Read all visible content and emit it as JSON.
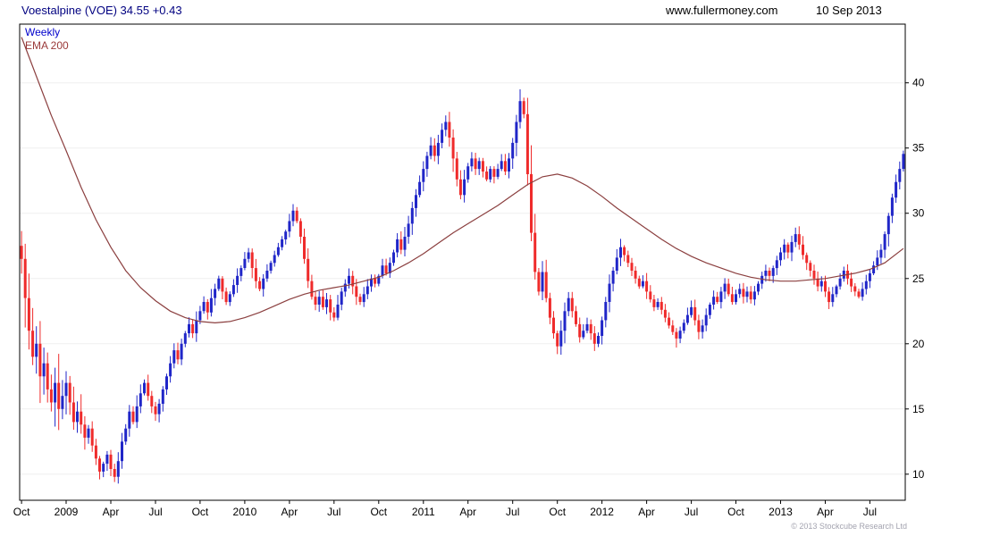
{
  "header": {
    "title": "Voestalpine (VOE) 34.55 +0.43",
    "url": "www.fullermoney.com",
    "date": "10 Sep 2013"
  },
  "legend": {
    "timeframe": "Weekly",
    "overlay": "EMA 200"
  },
  "footer": {
    "copyright": "© 2013 Stockcube Research Ltd"
  },
  "chart_data": {
    "type": "candlestick",
    "title": "Voestalpine (VOE) 34.55 +0.43",
    "subtitle": "Weekly candles with EMA 200 overlay, Oct 2008 - Sep 2013",
    "last_price": 34.55,
    "change": 0.43,
    "grid": "horizontal-only",
    "legend_position": "top-left",
    "y_ticks": [
      10,
      15,
      20,
      25,
      30,
      35,
      40
    ],
    "ylim": [
      8,
      44.5
    ],
    "x_ticks": [
      {
        "label": "Oct",
        "week": 0
      },
      {
        "label": "2009",
        "week": 12
      },
      {
        "label": "Apr",
        "week": 24
      },
      {
        "label": "Jul",
        "week": 36
      },
      {
        "label": "Oct",
        "week": 48
      },
      {
        "label": "2010",
        "week": 60
      },
      {
        "label": "Apr",
        "week": 72
      },
      {
        "label": "Jul",
        "week": 84
      },
      {
        "label": "Oct",
        "week": 96
      },
      {
        "label": "2011",
        "week": 108
      },
      {
        "label": "Apr",
        "week": 120
      },
      {
        "label": "Jul",
        "week": 132
      },
      {
        "label": "Oct",
        "week": 144
      },
      {
        "label": "2012",
        "week": 156
      },
      {
        "label": "Apr",
        "week": 168
      },
      {
        "label": "Jul",
        "week": 180
      },
      {
        "label": "Oct",
        "week": 192
      },
      {
        "label": "2013",
        "week": 204
      },
      {
        "label": "Apr",
        "week": 216
      },
      {
        "label": "Jul",
        "week": 228
      }
    ],
    "first_open": 27.5,
    "closes": [
      26.5,
      23.5,
      21.0,
      19.0,
      20.0,
      17.5,
      18.5,
      16.5,
      15.5,
      17.0,
      15.0,
      16.0,
      17.0,
      15.5,
      14.0,
      14.8,
      13.8,
      12.8,
      13.5,
      12.2,
      11.2,
      10.2,
      10.8,
      11.5,
      10.4,
      9.8,
      11.0,
      12.5,
      13.5,
      14.8,
      14.0,
      15.2,
      16.2,
      17.0,
      16.0,
      15.2,
      14.6,
      15.4,
      16.5,
      17.5,
      18.5,
      19.5,
      18.8,
      20.0,
      20.8,
      21.5,
      20.8,
      21.8,
      22.5,
      23.2,
      22.4,
      23.5,
      24.2,
      25.0,
      24.0,
      23.2,
      23.8,
      24.5,
      25.2,
      25.8,
      26.5,
      27.0,
      25.8,
      24.8,
      24.2,
      25.0,
      25.6,
      26.2,
      26.8,
      27.4,
      28.0,
      28.6,
      29.4,
      30.2,
      29.4,
      28.2,
      26.5,
      24.8,
      23.6,
      23.0,
      23.6,
      22.8,
      23.4,
      22.4,
      22.0,
      23.0,
      24.0,
      24.6,
      25.2,
      24.4,
      23.6,
      23.2,
      23.8,
      24.4,
      25.0,
      24.6,
      25.2,
      26.0,
      25.4,
      26.2,
      27.0,
      28.0,
      27.2,
      28.2,
      29.2,
      30.4,
      31.4,
      32.4,
      33.4,
      34.4,
      35.2,
      34.4,
      35.4,
      36.4,
      37.0,
      35.8,
      34.2,
      32.6,
      31.4,
      32.6,
      33.6,
      34.2,
      33.4,
      34.0,
      33.2,
      32.6,
      33.4,
      32.8,
      33.4,
      34.0,
      33.2,
      34.2,
      35.4,
      37.0,
      38.6,
      37.6,
      33.0,
      28.5,
      25.5,
      24.0,
      25.5,
      23.5,
      22.0,
      20.8,
      19.8,
      21.0,
      22.5,
      23.5,
      22.5,
      21.5,
      20.5,
      21.0,
      21.5,
      20.8,
      20.0,
      20.6,
      21.8,
      23.2,
      24.6,
      25.6,
      26.6,
      27.4,
      26.8,
      26.2,
      25.6,
      25.0,
      24.4,
      24.8,
      24.0,
      23.4,
      22.8,
      23.2,
      22.6,
      22.0,
      21.4,
      20.9,
      20.4,
      21.0,
      21.6,
      22.2,
      22.8,
      21.8,
      20.9,
      21.4,
      22.2,
      23.0,
      23.6,
      23.2,
      24.0,
      24.6,
      23.8,
      23.2,
      23.8,
      24.2,
      23.6,
      24.0,
      23.4,
      24.0,
      24.6,
      25.2,
      25.6,
      25.2,
      25.8,
      26.4,
      27.0,
      27.6,
      27.0,
      27.8,
      28.4,
      27.6,
      26.8,
      26.2,
      25.6,
      25.0,
      24.4,
      24.8,
      24.0,
      23.2,
      23.8,
      24.4,
      25.0,
      25.6,
      25.0,
      24.4,
      24.0,
      23.6,
      24.2,
      24.8,
      25.4,
      26.0,
      26.6,
      27.2,
      28.4,
      29.8,
      31.2,
      32.4,
      33.4,
      34.55
    ],
    "wick_overrides": {
      "21": [
        11.4,
        9.6
      ],
      "25": [
        10.8,
        9.4
      ],
      "73": [
        30.7,
        29.0
      ],
      "114": [
        37.5,
        35.9
      ],
      "134": [
        39.5,
        36.5
      ],
      "144": [
        21.0,
        19.2
      ],
      "176": [
        21.2,
        19.7
      ],
      "208": [
        28.9,
        27.4
      ],
      "237": [
        34.8,
        33.2
      ]
    },
    "ema_anchors": [
      [
        0,
        43.5
      ],
      [
        4,
        40.5
      ],
      [
        8,
        37.5
      ],
      [
        12,
        34.8
      ],
      [
        16,
        32.0
      ],
      [
        20,
        29.5
      ],
      [
        24,
        27.4
      ],
      [
        28,
        25.6
      ],
      [
        32,
        24.3
      ],
      [
        36,
        23.3
      ],
      [
        40,
        22.5
      ],
      [
        44,
        22.0
      ],
      [
        48,
        21.7
      ],
      [
        52,
        21.6
      ],
      [
        56,
        21.7
      ],
      [
        60,
        22.0
      ],
      [
        64,
        22.4
      ],
      [
        68,
        22.9
      ],
      [
        72,
        23.4
      ],
      [
        76,
        23.8
      ],
      [
        80,
        24.1
      ],
      [
        84,
        24.3
      ],
      [
        88,
        24.5
      ],
      [
        92,
        24.8
      ],
      [
        96,
        25.1
      ],
      [
        100,
        25.6
      ],
      [
        104,
        26.2
      ],
      [
        108,
        26.9
      ],
      [
        112,
        27.7
      ],
      [
        116,
        28.5
      ],
      [
        120,
        29.2
      ],
      [
        124,
        29.9
      ],
      [
        128,
        30.6
      ],
      [
        132,
        31.4
      ],
      [
        136,
        32.2
      ],
      [
        140,
        32.8
      ],
      [
        144,
        33.0
      ],
      [
        148,
        32.7
      ],
      [
        152,
        32.1
      ],
      [
        156,
        31.3
      ],
      [
        160,
        30.4
      ],
      [
        164,
        29.6
      ],
      [
        168,
        28.8
      ],
      [
        172,
        28.0
      ],
      [
        176,
        27.3
      ],
      [
        180,
        26.7
      ],
      [
        184,
        26.2
      ],
      [
        188,
        25.8
      ],
      [
        192,
        25.4
      ],
      [
        196,
        25.1
      ],
      [
        200,
        24.9
      ],
      [
        204,
        24.8
      ],
      [
        208,
        24.8
      ],
      [
        212,
        24.9
      ],
      [
        216,
        25.0
      ],
      [
        220,
        25.2
      ],
      [
        224,
        25.4
      ],
      [
        228,
        25.7
      ],
      [
        232,
        26.2
      ],
      [
        237,
        27.3
      ]
    ],
    "colors": {
      "up": "#2026c8",
      "down": "#ef2b2b",
      "ema": "#8b3f3f",
      "grid": "#efefef",
      "axis": "#000000",
      "title": "#000080",
      "header_text": "#000000",
      "legend_weekly": "#0000cc",
      "legend_ema": "#9a3838",
      "copyright": "#a3a3af"
    }
  }
}
